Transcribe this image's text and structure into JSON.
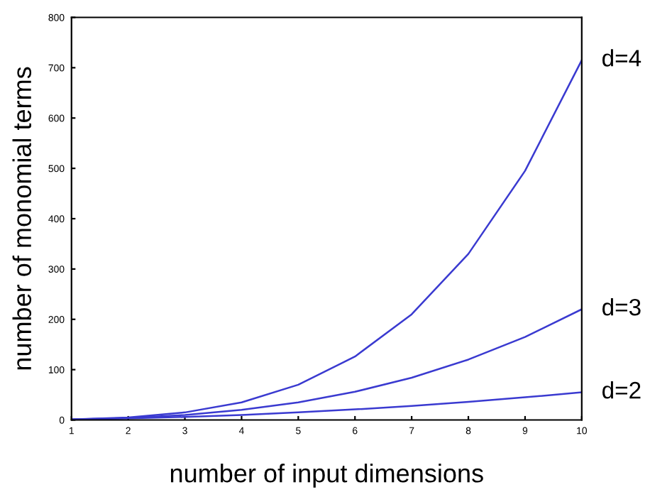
{
  "chart_data": {
    "type": "line",
    "xlabel": "number of input dimensions",
    "ylabel": "number of monomial terms",
    "x": [
      1,
      2,
      3,
      4,
      5,
      6,
      7,
      8,
      9,
      10
    ],
    "series": [
      {
        "name": "d=4",
        "color": "#3a3ad0",
        "values": [
          1,
          5,
          15,
          35,
          70,
          126,
          210,
          330,
          495,
          715
        ]
      },
      {
        "name": "d=3",
        "color": "#3a3ad0",
        "values": [
          1,
          4,
          10,
          20,
          35,
          56,
          84,
          120,
          165,
          220
        ]
      },
      {
        "name": "d=2",
        "color": "#3a3ad0",
        "values": [
          1,
          3,
          6,
          10,
          15,
          21,
          28,
          36,
          45,
          55
        ]
      }
    ],
    "xlim": [
      1,
      10
    ],
    "xticks": [
      1,
      2,
      3,
      4,
      5,
      6,
      7,
      8,
      9,
      10
    ],
    "ylim": [
      0,
      800
    ],
    "yticks": [
      0,
      100,
      200,
      300,
      400,
      500,
      600,
      700,
      800
    ],
    "grid": false,
    "legend": false,
    "marker": "none",
    "line_style": "solid"
  }
}
